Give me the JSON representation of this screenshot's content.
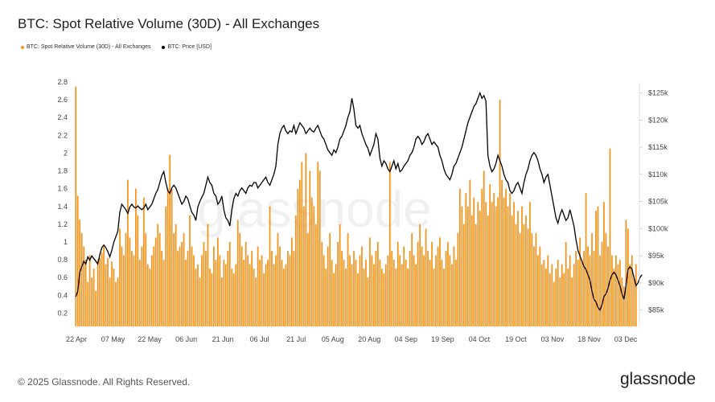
{
  "header": {
    "title": "BTC: Spot Relative Volume (30D) - All Exchanges"
  },
  "legend": {
    "items": [
      {
        "label": "BTC: Spot Relative Volume (30D) - All Exchanges",
        "color": "#f7931a"
      },
      {
        "label": "BTC: Price [USD]",
        "color": "#000000"
      }
    ]
  },
  "watermark": "glassnode",
  "footer": {
    "copyright": "© 2025 Glassnode. All Rights Reserved.",
    "logo": "glassnode"
  },
  "chart_data": {
    "type": "bar+line",
    "title": "BTC: Spot Relative Volume (30D) - All Exchanges",
    "x_tick_labels": [
      "22 Apr",
      "07 May",
      "22 May",
      "06 Jun",
      "21 Jun",
      "06 Jul",
      "21 Jul",
      "05 Aug",
      "20 Aug",
      "04 Sep",
      "19 Sep",
      "04 Oct",
      "19 Oct",
      "03 Nov",
      "18 Nov",
      "03 Dec"
    ],
    "y_left": {
      "ticks": [
        0.2,
        0.4,
        0.6,
        0.8,
        1,
        1.2,
        1.4,
        1.6,
        1.8,
        2,
        2.2,
        2.4,
        2.6,
        2.8
      ],
      "range": [
        0.05,
        2.8
      ]
    },
    "y_right": {
      "ticks": [
        85000,
        90000,
        95000,
        100000,
        105000,
        110000,
        115000,
        120000,
        125000
      ],
      "tick_labels": [
        "$85k",
        "$90k",
        "$95k",
        "$100k",
        "$105k",
        "$110k",
        "$115k",
        "$120k",
        "$125k"
      ],
      "range": [
        82000,
        127000
      ]
    },
    "grid": false,
    "series": [
      {
        "name": "BTC: Spot Relative Volume (30D) - All Exchanges",
        "type": "bar",
        "color": "#f7931a",
        "axis": "left",
        "values": [
          2.75,
          1.52,
          1.25,
          1.1,
          0.95,
          0.8,
          0.55,
          0.85,
          0.6,
          0.7,
          0.45,
          0.8,
          0.82,
          0.88,
          0.95,
          0.75,
          0.82,
          0.6,
          0.78,
          0.7,
          0.55,
          0.6,
          1.15,
          0.95,
          0.85,
          1.1,
          1.7,
          1.05,
          0.9,
          0.85,
          1.6,
          1.3,
          0.8,
          0.95,
          1.5,
          1.1,
          0.75,
          0.7,
          0.85,
          0.95,
          1.05,
          1.2,
          1.1,
          0.9,
          0.8,
          1.4,
          1.6,
          1.98,
          1.6,
          1.1,
          1.2,
          0.9,
          0.95,
          1.0,
          1.1,
          0.8,
          0.9,
          1.3,
          0.95,
          0.85,
          0.7,
          0.75,
          0.6,
          0.85,
          1.0,
          0.9,
          1.2,
          0.7,
          0.65,
          0.95,
          0.8,
          1.05,
          0.85,
          0.6,
          0.8,
          0.75,
          0.9,
          1.0,
          0.7,
          0.65,
          0.75,
          1.25,
          1.1,
          0.95,
          0.8,
          1.0,
          0.85,
          0.75,
          0.9,
          0.7,
          0.6,
          0.95,
          0.8,
          0.85,
          0.65,
          0.75,
          0.8,
          1.4,
          0.9,
          0.75,
          0.85,
          1.1,
          0.95,
          0.8,
          0.7,
          0.75,
          0.9,
          0.85,
          1.05,
          0.9,
          1.3,
          1.6,
          1.7,
          1.9,
          1.4,
          2.0,
          1.1,
          1.8,
          1.5,
          1.4,
          1.2,
          1.9,
          1.8,
          1.0,
          0.85,
          0.7,
          0.95,
          1.1,
          0.8,
          0.65,
          0.75,
          1.0,
          1.2,
          0.9,
          0.8,
          0.7,
          1.1,
          0.85,
          0.75,
          0.9,
          0.8,
          0.65,
          0.85,
          0.95,
          0.7,
          0.8,
          0.6,
          1.05,
          0.85,
          0.75,
          0.9,
          1.0,
          0.8,
          0.7,
          0.65,
          0.75,
          0.85,
          1.9,
          0.9,
          0.8,
          0.7,
          1.0,
          0.85,
          0.75,
          0.95,
          0.8,
          0.7,
          0.9,
          1.1,
          0.85,
          0.75,
          1.0,
          1.2,
          0.95,
          0.85,
          1.15,
          0.9,
          0.8,
          1.0,
          0.7,
          0.85,
          0.95,
          1.05,
          0.8,
          0.7,
          0.9,
          1.0,
          0.85,
          0.75,
          0.95,
          0.8,
          1.1,
          1.6,
          1.4,
          1.2,
          1.55,
          1.4,
          1.7,
          1.3,
          1.5,
          1.2,
          1.45,
          1.35,
          1.6,
          1.8,
          1.45,
          1.3,
          1.65,
          1.45,
          1.55,
          1.4,
          1.5,
          2.6,
          1.7,
          1.5,
          1.6,
          1.4,
          1.55,
          1.3,
          1.45,
          1.2,
          1.35,
          1.1,
          1.4,
          1.2,
          1.3,
          1.15,
          1.45,
          1.1,
          0.95,
          1.1,
          0.85,
          0.95,
          0.75,
          0.8,
          0.7,
          0.85,
          0.65,
          0.75,
          0.55,
          0.7,
          0.8,
          0.6,
          0.75,
          0.65,
          1.0,
          0.7,
          0.85,
          0.6,
          0.75,
          0.9,
          0.8,
          1.05,
          0.8,
          0.9,
          1.55,
          0.95,
          0.85,
          1.1,
          0.9,
          1.35,
          1.4,
          0.85,
          1.0,
          1.45,
          1.1,
          0.95,
          2.05,
          0.85,
          0.7,
          0.85,
          0.75,
          0.8,
          0.6,
          0.5,
          1.25,
          1.15,
          0.75,
          0.85,
          0.6,
          0.75
        ]
      },
      {
        "name": "BTC: Price [USD]",
        "type": "line",
        "color": "#000000",
        "axis": "right",
        "values": [
          87500,
          88500,
          92000,
          93000,
          94000,
          93500,
          94800,
          94200,
          95000,
          94500,
          94000,
          93500,
          95200,
          96500,
          97000,
          96500,
          95800,
          94800,
          96000,
          97500,
          98500,
          99500,
          103000,
          104500,
          104000,
          103500,
          102800,
          104000,
          104500,
          104000,
          103800,
          104200,
          103800,
          103500,
          103800,
          104500,
          103500,
          104000,
          104500,
          105500,
          106500,
          107200,
          108500,
          109800,
          110500,
          108500,
          107000,
          106500,
          107500,
          108000,
          107500,
          106500,
          105500,
          104500,
          105000,
          106000,
          105500,
          104200,
          103000,
          102500,
          101500,
          104000,
          105000,
          105800,
          106500,
          108000,
          109500,
          108500,
          108000,
          106500,
          106000,
          104500,
          105000,
          106000,
          103500,
          102000,
          101500,
          100500,
          103500,
          105500,
          106500,
          106000,
          107000,
          107500,
          107000,
          106500,
          107500,
          108000,
          107800,
          108500,
          108500,
          107500,
          108000,
          108500,
          109000,
          109500,
          108500,
          108000,
          109000,
          110000,
          111500,
          115500,
          117500,
          118500,
          119000,
          118000,
          117500,
          118000,
          117800,
          119000,
          117500,
          118500,
          119500,
          119000,
          118500,
          117500,
          118000,
          118500,
          118000,
          117800,
          118500,
          119000,
          118000,
          117000,
          116500,
          115500,
          114500,
          114000,
          113500,
          114500,
          114000,
          115000,
          116500,
          117000,
          118000,
          119000,
          120500,
          121500,
          124000,
          122000,
          119000,
          118500,
          119000,
          117500,
          116500,
          115500,
          114800,
          113500,
          114500,
          115500,
          117500,
          116500,
          113000,
          111500,
          112500,
          112000,
          111000,
          110500,
          111500,
          112500,
          111000,
          112000,
          110500,
          110800,
          111500,
          112000,
          112500,
          113500,
          114000,
          115000,
          116500,
          117000,
          116500,
          115500,
          116000,
          117000,
          117500,
          116500,
          115500,
          116000,
          115500,
          115000,
          113500,
          112500,
          111000,
          110000,
          109500,
          109000,
          110000,
          111500,
          112000,
          113000,
          114000,
          115000,
          116500,
          118000,
          119500,
          120500,
          121500,
          122500,
          123000,
          124000,
          125000,
          124000,
          124500,
          123500,
          113500,
          111500,
          110500,
          111000,
          112000,
          113500,
          112500,
          111500,
          110000,
          109000,
          108500,
          107000,
          106500,
          107000,
          108000,
          108500,
          107500,
          106500,
          108500,
          110000,
          111000,
          112500,
          113500,
          114000,
          113500,
          112500,
          111000,
          110000,
          108500,
          109500,
          110000,
          108000,
          106000,
          104000,
          102000,
          101000,
          102500,
          103500,
          102500,
          101500,
          102000,
          103500,
          102000,
          100500,
          98000,
          96000,
          95000,
          94000,
          93000,
          92500,
          91500,
          90500,
          88500,
          87000,
          86500,
          85500,
          85000,
          86000,
          87500,
          88000,
          89000,
          90500,
          91500,
          92000,
          91500,
          90500,
          89500,
          88000,
          87000,
          89500,
          92500,
          93000,
          92500,
          91000,
          89500,
          90000,
          91000,
          91500
        ]
      }
    ]
  }
}
